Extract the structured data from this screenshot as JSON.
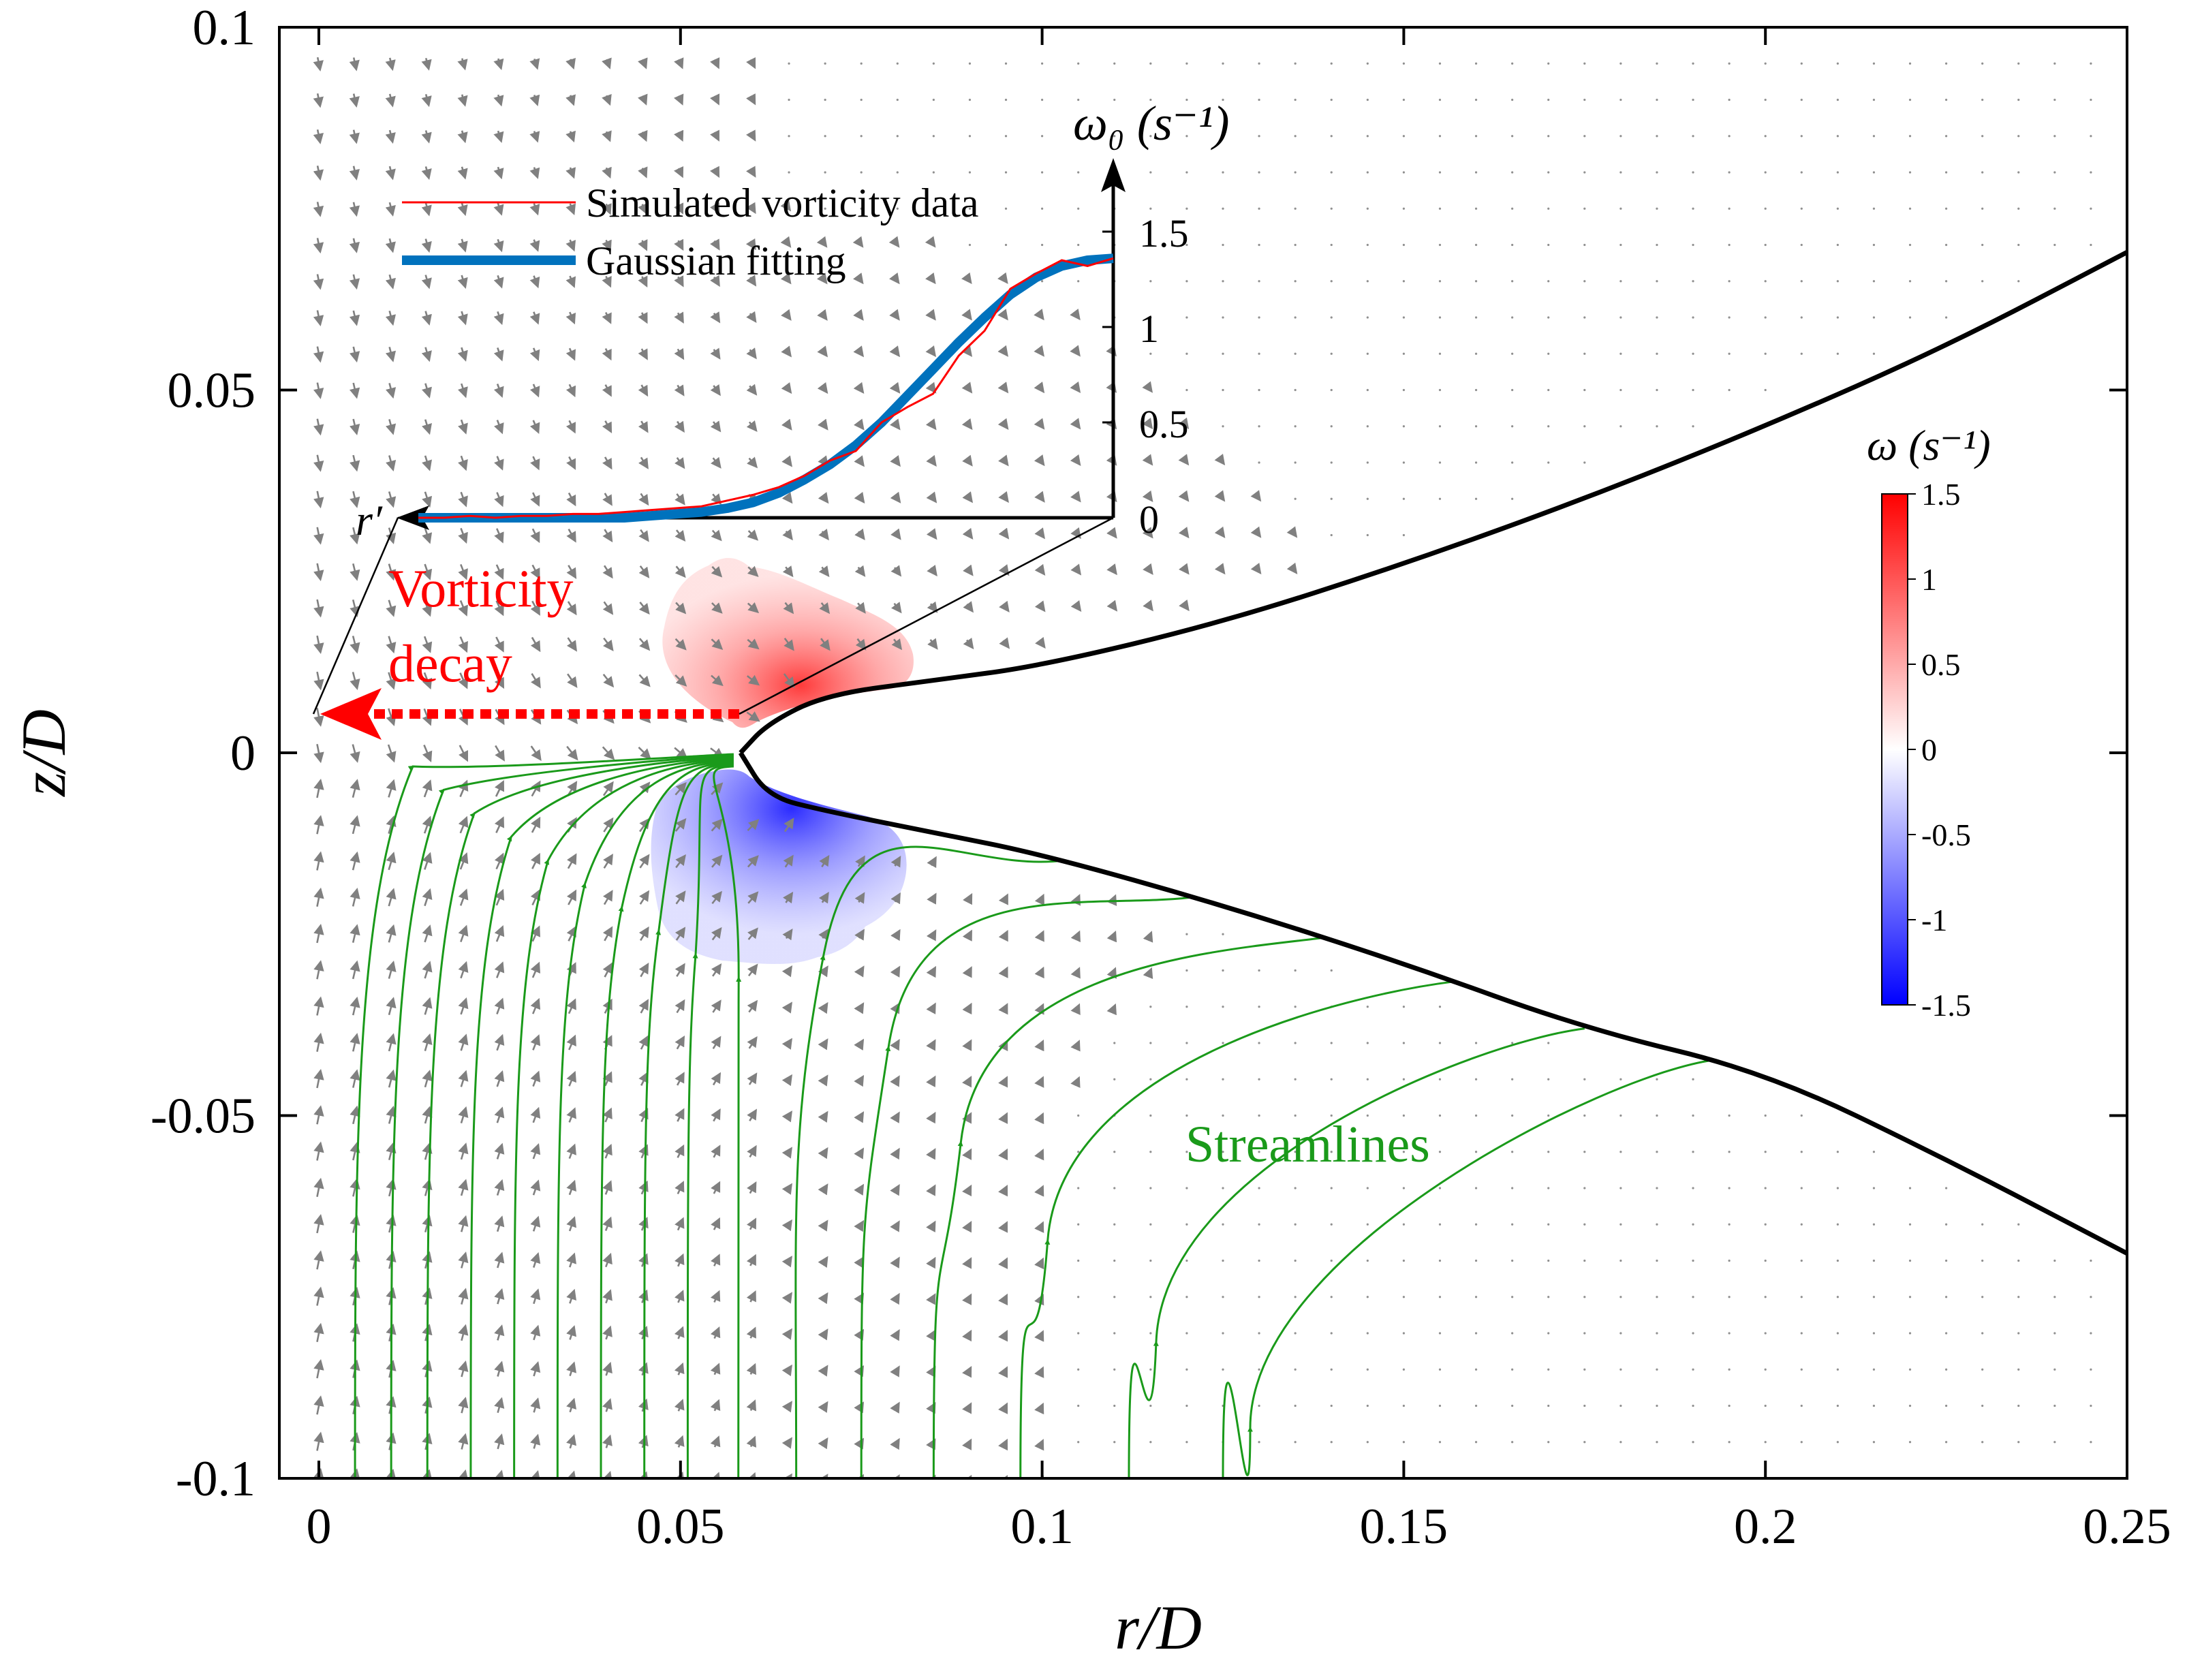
{
  "chart_data": {
    "type": "quiver",
    "xlabel": "r/D",
    "ylabel": "z/D",
    "xlim": [
      0,
      0.25
    ],
    "ylim": [
      -0.1,
      0.1
    ],
    "xticks": [
      "0",
      "0.05",
      "0.1",
      "0.15",
      "0.2",
      "0.25"
    ],
    "yticks": [
      "0.1",
      "0.05",
      "0",
      "-0.05",
      "-0.1"
    ],
    "grid": false,
    "annotations": {
      "vorticity_decay": [
        "Vorticity",
        "decay"
      ],
      "streamlines": "Streamlines",
      "r_prime": "r′"
    },
    "interface": {
      "upper": [
        [
          0.0583,
          0.0
        ],
        [
          0.062,
          0.004
        ],
        [
          0.07,
          0.008
        ],
        [
          0.085,
          0.01
        ],
        [
          0.1,
          0.012
        ],
        [
          0.125,
          0.018
        ],
        [
          0.15,
          0.026
        ],
        [
          0.175,
          0.035
        ],
        [
          0.2,
          0.045
        ],
        [
          0.225,
          0.056
        ],
        [
          0.25,
          0.069
        ]
      ],
      "lower": [
        [
          0.0583,
          0.0
        ],
        [
          0.062,
          -0.006
        ],
        [
          0.07,
          -0.008
        ],
        [
          0.085,
          -0.011
        ],
        [
          0.1,
          -0.014
        ],
        [
          0.125,
          -0.021
        ],
        [
          0.15,
          -0.029
        ],
        [
          0.175,
          -0.038
        ],
        [
          0.2,
          -0.044
        ],
        [
          0.225,
          -0.056
        ],
        [
          0.25,
          -0.069
        ]
      ]
    },
    "streamline_start_r": [
      0.005,
      0.01,
      0.015,
      0.021,
      0.027,
      0.033,
      0.039,
      0.045,
      0.051,
      0.058,
      0.066,
      0.075,
      0.085,
      0.097,
      0.112,
      0.125
    ],
    "vorticity_colorbar": {
      "label": "ω (s⁻¹)",
      "range": [
        -1.5,
        1.5
      ],
      "ticks": [
        "1.5",
        "1",
        "0.5",
        "0",
        "-0.5",
        "-1",
        "-1.5"
      ]
    },
    "inset": {
      "xlabel": "r′",
      "ylabel": "ω₀ (s⁻¹)",
      "ylim": [
        0,
        1.5
      ],
      "yticks": [
        "1.5",
        "1",
        "0.5",
        "0"
      ],
      "series": [
        {
          "name": "Simulated vorticity data",
          "color": "#ff0000",
          "y": [
            0.0,
            0.0,
            0.01,
            0.0,
            0.01,
            0.01,
            0.02,
            0.02,
            0.03,
            0.04,
            0.05,
            0.06,
            0.09,
            0.12,
            0.16,
            0.22,
            0.3,
            0.35,
            0.5,
            0.58,
            0.65,
            0.85,
            0.98,
            1.2,
            1.28,
            1.35,
            1.32,
            1.36
          ]
        },
        {
          "name": "Gaussian fitting",
          "color": "#0072bd",
          "y": [
            0.0,
            0.0,
            0.0,
            0.0,
            0.0,
            0.0,
            0.0,
            0.0,
            0.0,
            0.01,
            0.02,
            0.03,
            0.05,
            0.08,
            0.13,
            0.2,
            0.28,
            0.38,
            0.5,
            0.64,
            0.78,
            0.92,
            1.05,
            1.17,
            1.26,
            1.32,
            1.35,
            1.36
          ]
        }
      ]
    },
    "colors": {
      "vectors": "#808080",
      "streamlines": "#1a9a1a",
      "interface": "#000000",
      "annotation": "#ff0000"
    }
  }
}
